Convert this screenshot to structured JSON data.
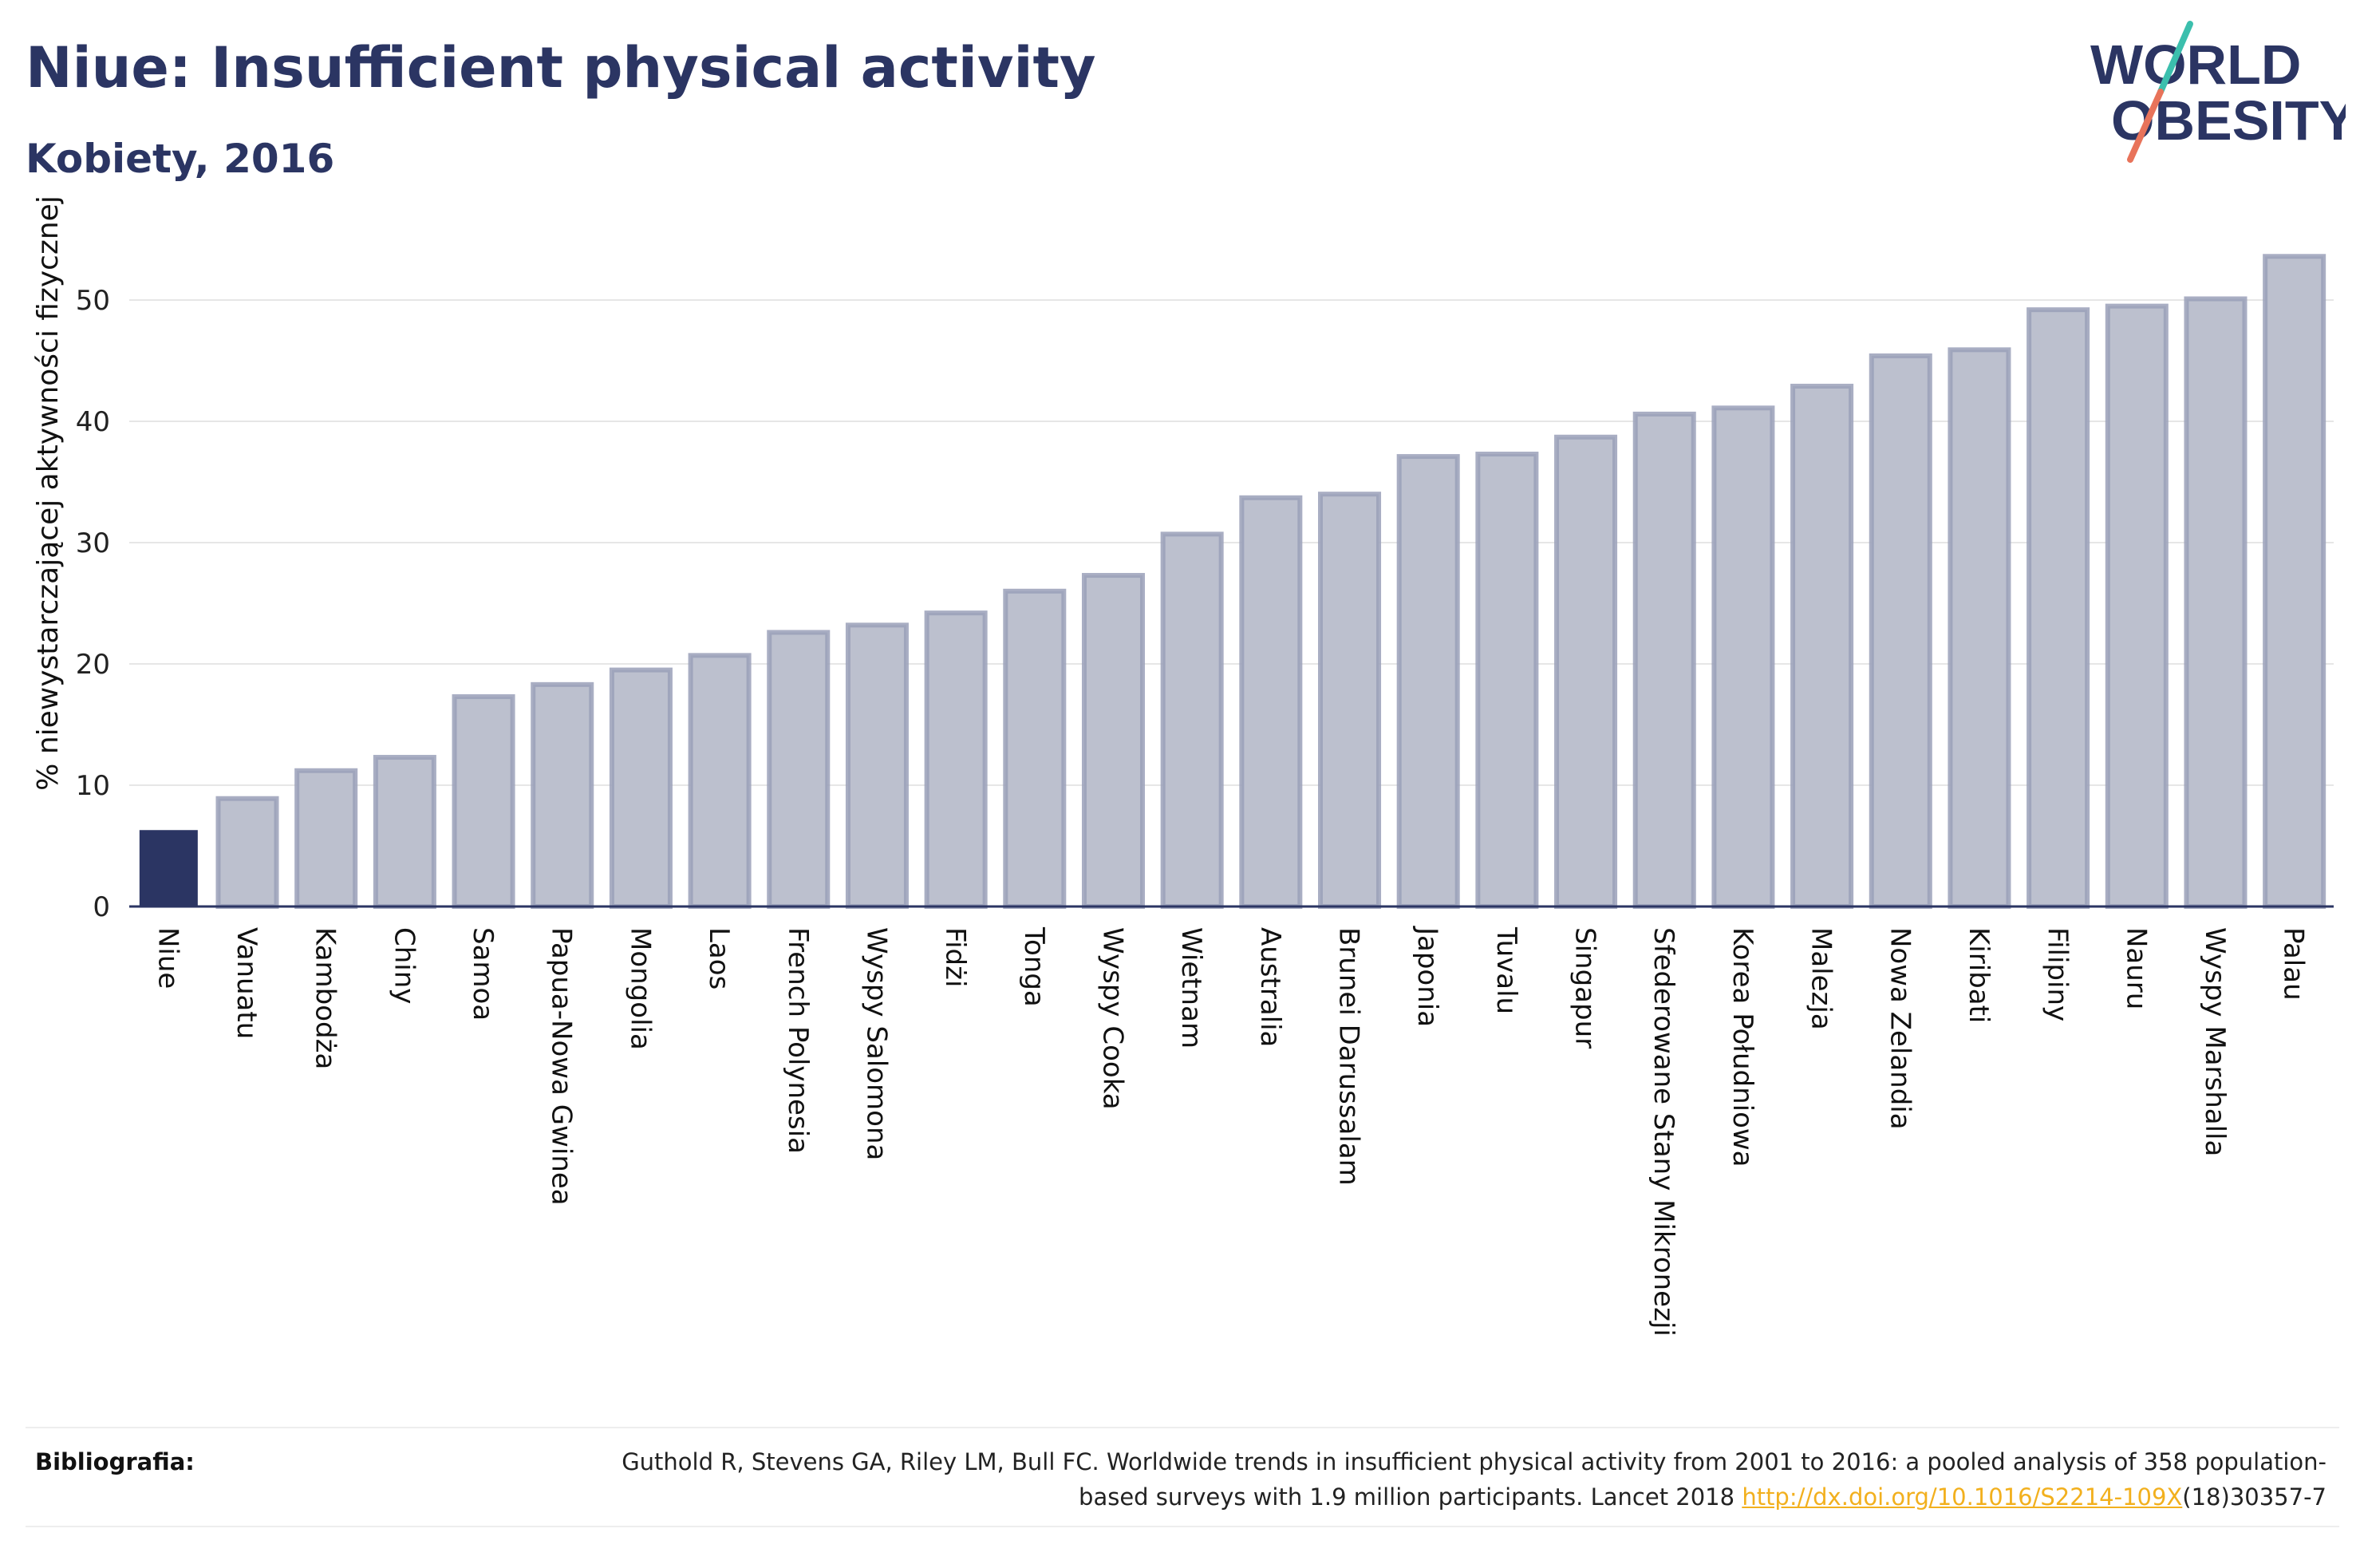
{
  "header": {
    "title": "Niue: Insufficient physical activity",
    "subtitle": "Kobiety, 2016"
  },
  "logo": {
    "line1": "WORLD",
    "line2": "OBESITY",
    "text_color": "#2b3563",
    "slash_teal": "#3bbfad",
    "slash_coral": "#e8735a"
  },
  "colors": {
    "highlight_bar": "#2b3563",
    "other_bar_fill": "#bcc0ce",
    "other_bar_stroke": "#9aa0b8",
    "axis": "#2b3563",
    "grid": "#e6e6e6"
  },
  "chart_data": {
    "type": "bar",
    "title": "Niue: Insufficient physical activity",
    "subtitle": "Kobiety, 2016",
    "xlabel": "",
    "ylabel": "% niewystarczającej aktywności fizycznej",
    "ylim": [
      0,
      55
    ],
    "yticks": [
      0,
      10,
      20,
      30,
      40,
      50
    ],
    "grid": true,
    "highlight": "Niue",
    "categories": [
      "Niue",
      "Vanuatu",
      "Kambodża",
      "Chiny",
      "Samoa",
      "Papua-Nowa Gwinea",
      "Mongolia",
      "Laos",
      "French Polynesia",
      "Wyspy Salomona",
      "Fidżi",
      "Tonga",
      "Wyspy Cooka",
      "Wietnam",
      "Australia",
      "Brunei Darussalam",
      "Japonia",
      "Tuvalu",
      "Singapur",
      "Sfederowane Stany Mikronezji",
      "Korea Południowa",
      "Malezja",
      "Nowa Zelandia",
      "Kiribati",
      "Filipiny",
      "Nauru",
      "Wyspy Marshalla",
      "Palau"
    ],
    "values": [
      6.3,
      8.9,
      11.2,
      12.3,
      17.3,
      18.3,
      19.5,
      20.7,
      22.6,
      23.2,
      24.2,
      26.0,
      27.3,
      30.7,
      33.7,
      34.0,
      37.1,
      37.3,
      38.7,
      40.6,
      41.1,
      42.9,
      45.4,
      45.9,
      49.2,
      49.5,
      50.1,
      53.6
    ]
  },
  "footer": {
    "label": "Bibliografia:",
    "citation": "Guthold R, Stevens GA, Riley LM, Bull FC. Worldwide trends in insufficient physical activity from 2001 to 2016: a pooled analysis of 358 population-based surveys with 1.9 million participants. Lancet 2018 ",
    "link_text": "http://dx.doi.org/10.1016/S2214-109X",
    "suffix": "(18)30357-7"
  }
}
